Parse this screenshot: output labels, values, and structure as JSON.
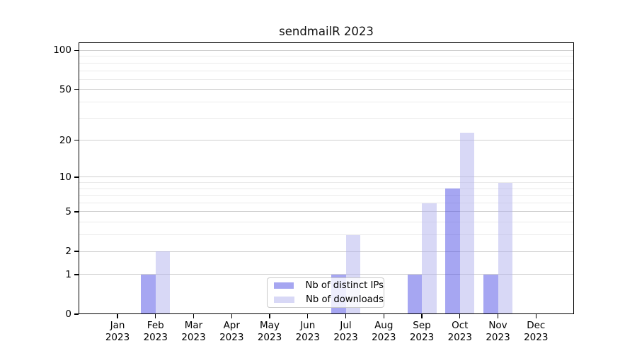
{
  "chart_data": {
    "type": "bar",
    "title": "sendmailR 2023",
    "categories": [
      "Jan",
      "Feb",
      "Mar",
      "Apr",
      "May",
      "Jun",
      "Jul",
      "Aug",
      "Sep",
      "Oct",
      "Nov",
      "Dec"
    ],
    "year": "2023",
    "series": [
      {
        "name": "Nb of distinct IPs",
        "color": "rgba(77,77,230,0.5)",
        "legend_color": "#a6a6f1",
        "values": [
          0,
          1,
          0,
          0,
          0,
          0,
          1,
          0,
          1,
          8,
          1,
          0
        ]
      },
      {
        "name": "Nb of downloads",
        "color": "rgba(177,177,237,0.5)",
        "legend_color": "#d8d8f6",
        "values": [
          0,
          2,
          0,
          0,
          0,
          0,
          3,
          0,
          6,
          23,
          9,
          0
        ]
      }
    ],
    "y_axis": {
      "scale": "log1p",
      "tick_labels": [
        100,
        50,
        20,
        10,
        5,
        2,
        1,
        0
      ],
      "major_gridlines": [
        1,
        2,
        5,
        10,
        20,
        50,
        100
      ],
      "minor_gridlines": [
        3,
        4,
        6,
        7,
        8,
        9,
        30,
        40,
        60,
        70,
        80,
        90
      ],
      "range": [
        0,
        117
      ]
    },
    "x_axis": {
      "tick_label_line2": "2023"
    },
    "grid": "horizontal",
    "legend_position": "bottom-center",
    "background": "#ffffff"
  }
}
